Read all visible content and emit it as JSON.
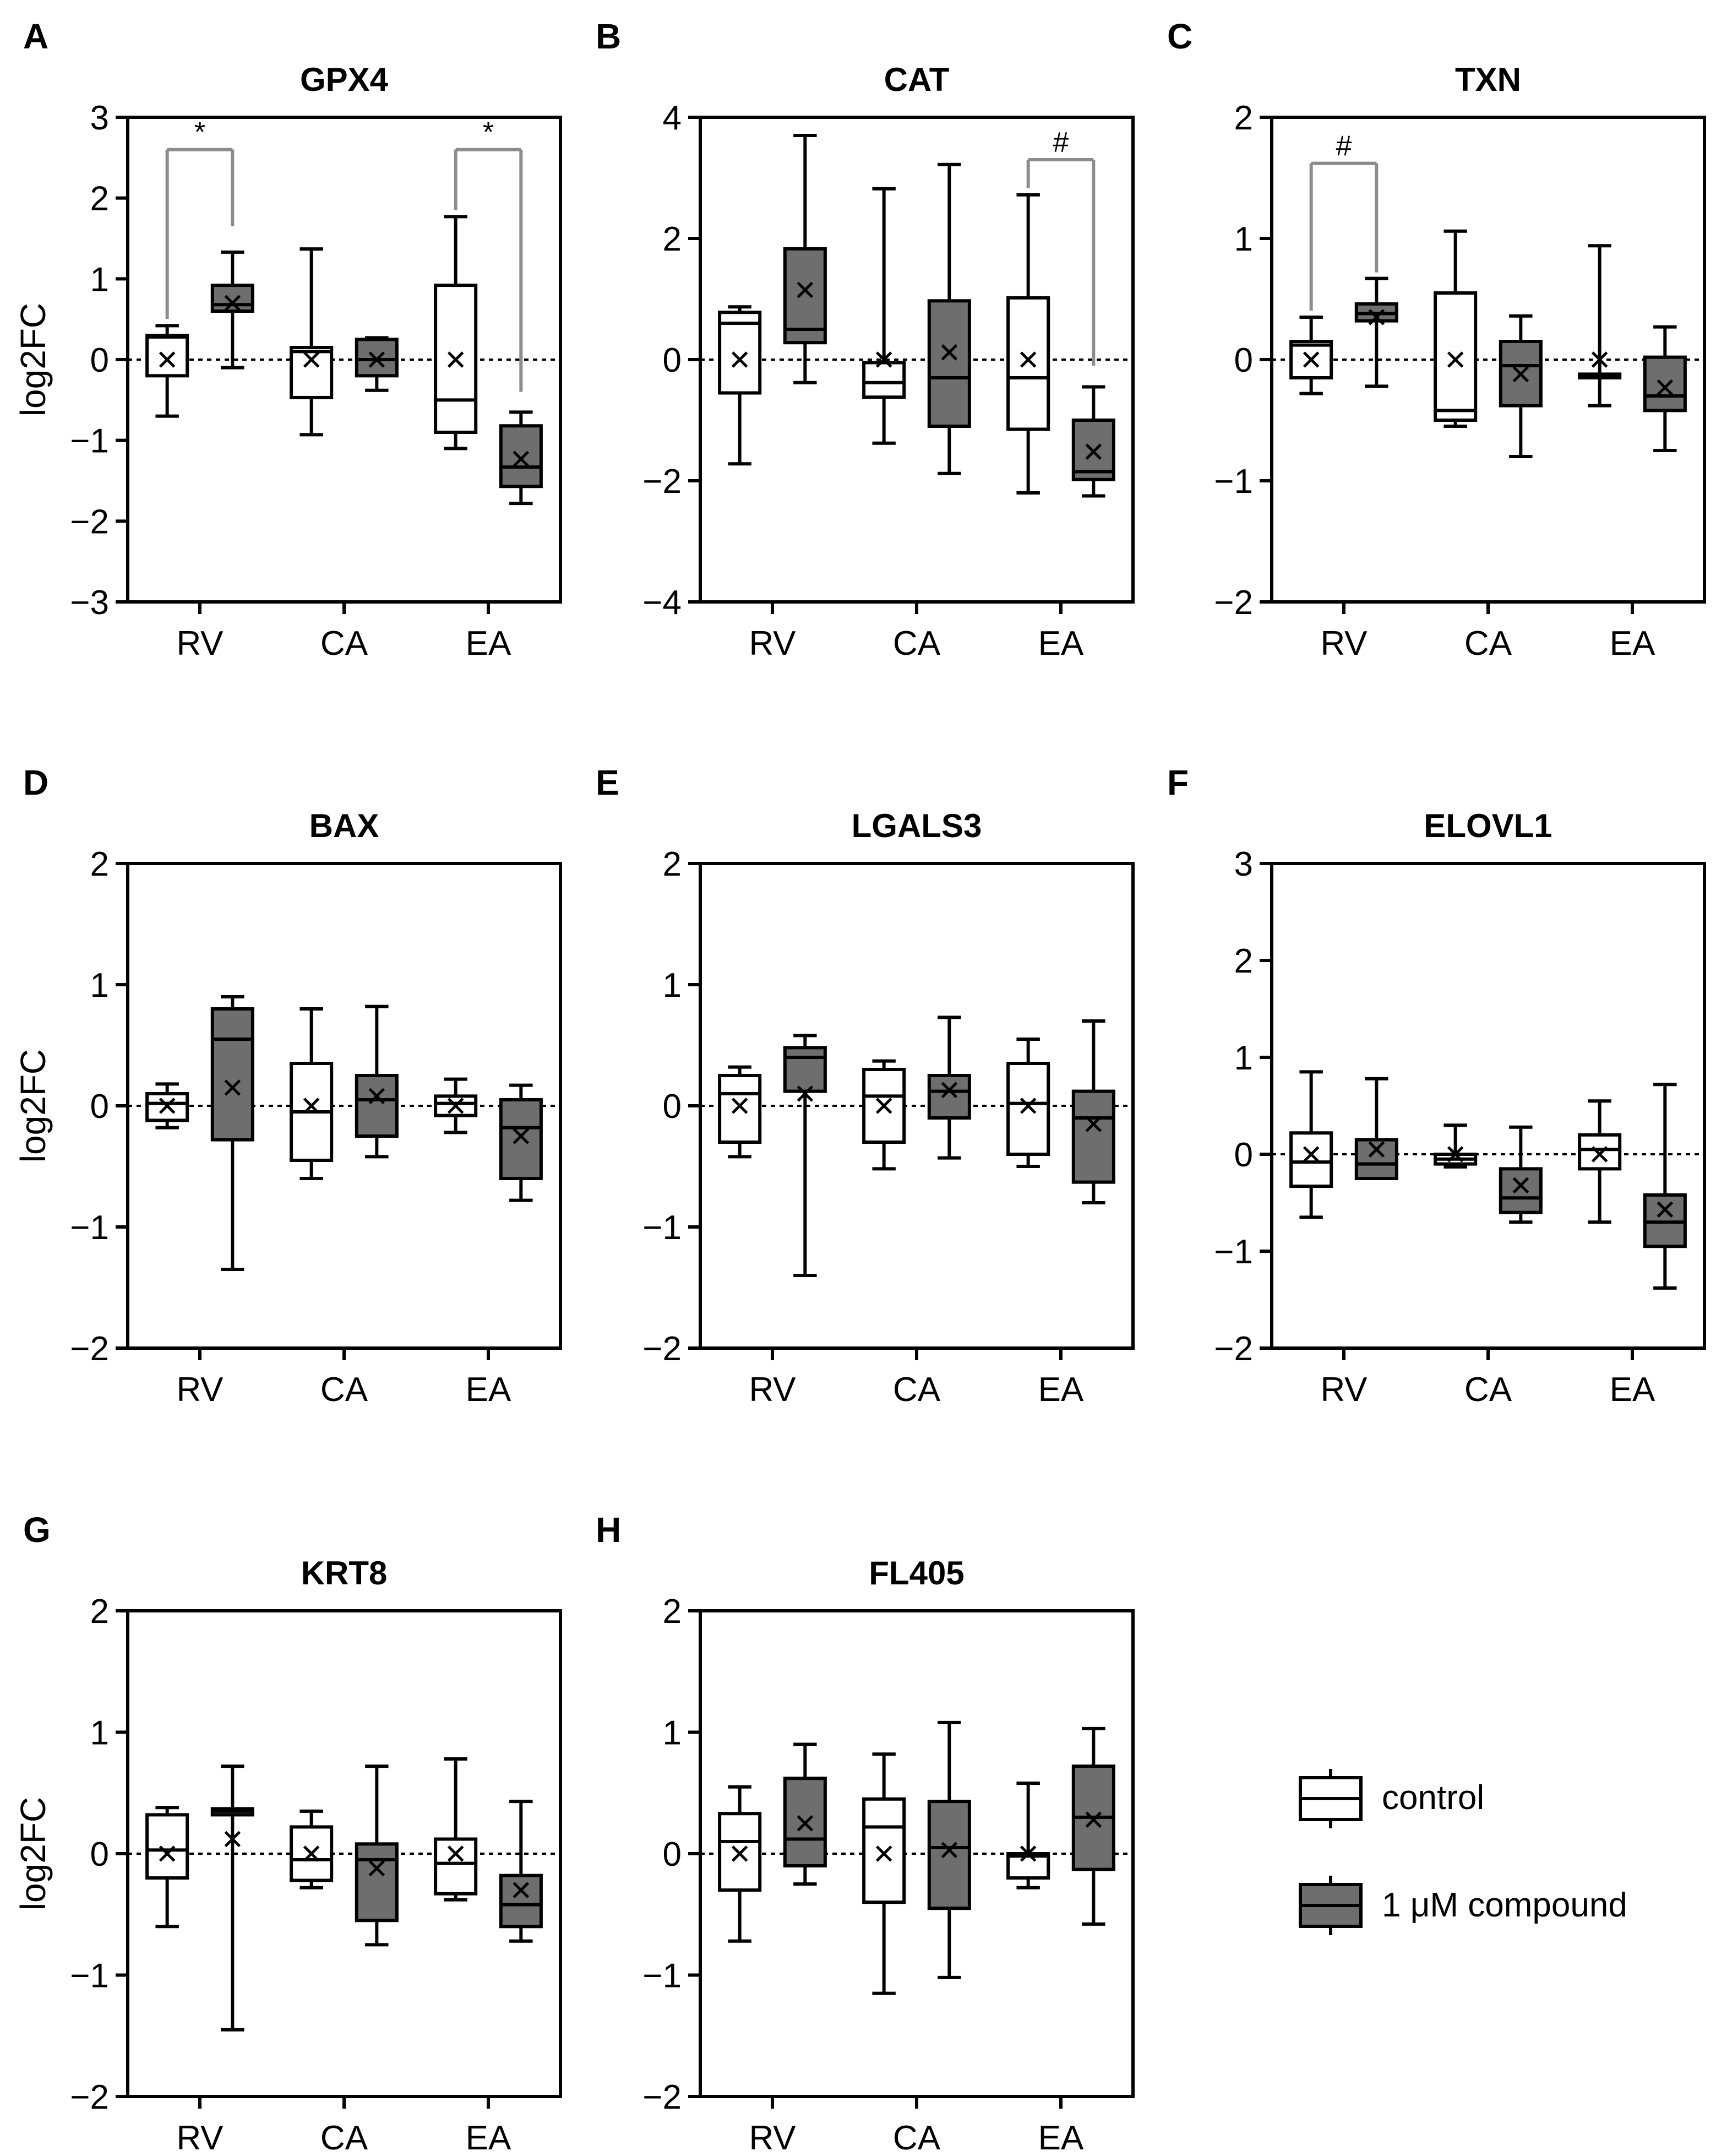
{
  "colors": {
    "control_fill": "#ffffff",
    "compound_fill": "#6e6e6e",
    "stroke": "#000000",
    "bracket": "#8c8c8c"
  },
  "legend": {
    "items": [
      {
        "label": "control",
        "fill": "#ffffff"
      },
      {
        "label": "1 μM compound",
        "fill": "#6e6e6e"
      }
    ]
  },
  "chart_data": [
    {
      "panel": "A",
      "type": "box",
      "title": "GPX4",
      "ylabel": "log2FC",
      "xlabel": "",
      "ylim": [
        -3,
        3
      ],
      "yticks": [
        -3,
        -2,
        -1,
        0,
        1,
        2,
        3
      ],
      "ytick_labels": [
        "−3",
        "−2",
        "−1",
        "0",
        "1",
        "2",
        "3"
      ],
      "categories": [
        "RV",
        "CA",
        "EA"
      ],
      "zero_line": true,
      "series": [
        {
          "name": "control",
          "boxes": [
            {
              "min": -0.7,
              "q1": -0.2,
              "median": 0.28,
              "q3": 0.3,
              "max": 0.42,
              "mean": 0.0
            },
            {
              "min": -0.93,
              "q1": -0.47,
              "median": 0.1,
              "q3": 0.15,
              "max": 1.37,
              "mean": 0.0
            },
            {
              "min": -1.1,
              "q1": -0.9,
              "median": -0.5,
              "q3": 0.92,
              "max": 1.77,
              "mean": 0.0
            }
          ]
        },
        {
          "name": "1 μM compound",
          "boxes": [
            {
              "min": -0.1,
              "q1": 0.6,
              "median": 0.68,
              "q3": 0.92,
              "max": 1.33,
              "mean": 0.7
            },
            {
              "min": -0.38,
              "q1": -0.2,
              "median": 0.0,
              "q3": 0.25,
              "max": 0.27,
              "mean": 0.0
            },
            {
              "min": -1.78,
              "q1": -1.57,
              "median": -1.33,
              "q3": -0.82,
              "max": -0.65,
              "mean": -1.23
            }
          ]
        }
      ],
      "annotations": [
        {
          "category": "RV",
          "label": "*",
          "y": 2.6,
          "right_end": 1.65
        },
        {
          "category": "EA",
          "label": "*",
          "y": 2.6,
          "right_end": -0.4
        }
      ]
    },
    {
      "panel": "B",
      "type": "box",
      "title": "CAT",
      "ylabel": "",
      "xlabel": "",
      "ylim": [
        -4,
        4
      ],
      "yticks": [
        -4,
        -2,
        0,
        2,
        4
      ],
      "ytick_labels": [
        "−4",
        "−2",
        "0",
        "2",
        "4"
      ],
      "categories": [
        "RV",
        "CA",
        "EA"
      ],
      "zero_line": true,
      "series": [
        {
          "name": "control",
          "boxes": [
            {
              "min": -1.72,
              "q1": -0.55,
              "median": 0.6,
              "q3": 0.78,
              "max": 0.87,
              "mean": 0.0
            },
            {
              "min": -1.38,
              "q1": -0.62,
              "median": -0.38,
              "q3": -0.05,
              "max": 2.82,
              "mean": 0.0
            },
            {
              "min": -2.2,
              "q1": -1.15,
              "median": -0.3,
              "q3": 1.02,
              "max": 2.72,
              "mean": 0.0
            }
          ]
        },
        {
          "name": "1 μM compound",
          "boxes": [
            {
              "min": -0.38,
              "q1": 0.28,
              "median": 0.5,
              "q3": 1.83,
              "max": 3.7,
              "mean": 1.15
            },
            {
              "min": -1.88,
              "q1": -1.1,
              "median": -0.3,
              "q3": 0.97,
              "max": 3.22,
              "mean": 0.12
            },
            {
              "min": -2.25,
              "q1": -1.98,
              "median": -1.85,
              "q3": -1.0,
              "max": -0.45,
              "mean": -1.52
            }
          ]
        }
      ],
      "annotations": [
        {
          "category": "EA",
          "label": "#",
          "y": 3.3,
          "right_end": -0.1
        }
      ]
    },
    {
      "panel": "C",
      "type": "box",
      "title": "TXN",
      "ylabel": "",
      "xlabel": "",
      "ylim": [
        -2,
        2
      ],
      "yticks": [
        -2,
        -1,
        0,
        1,
        2
      ],
      "ytick_labels": [
        "−2",
        "−1",
        "0",
        "1",
        "2"
      ],
      "categories": [
        "RV",
        "CA",
        "EA"
      ],
      "zero_line": true,
      "series": [
        {
          "name": "control",
          "boxes": [
            {
              "min": -0.28,
              "q1": -0.15,
              "median": 0.12,
              "q3": 0.15,
              "max": 0.35,
              "mean": 0.0
            },
            {
              "min": -0.55,
              "q1": -0.5,
              "median": -0.42,
              "q3": 0.55,
              "max": 1.06,
              "mean": 0.0
            },
            {
              "min": -0.38,
              "q1": -0.15,
              "median": -0.13,
              "q3": -0.12,
              "max": 0.94,
              "mean": 0.0
            }
          ]
        },
        {
          "name": "1 μM compound",
          "boxes": [
            {
              "min": -0.22,
              "q1": 0.32,
              "median": 0.38,
              "q3": 0.46,
              "max": 0.67,
              "mean": 0.35
            },
            {
              "min": -0.8,
              "q1": -0.38,
              "median": -0.05,
              "q3": 0.15,
              "max": 0.36,
              "mean": -0.12
            },
            {
              "min": -0.75,
              "q1": -0.42,
              "median": -0.3,
              "q3": 0.02,
              "max": 0.27,
              "mean": -0.23
            }
          ]
        }
      ],
      "annotations": [
        {
          "category": "RV",
          "label": "#",
          "y": 1.62,
          "right_end": 0.72
        }
      ]
    },
    {
      "panel": "D",
      "type": "box",
      "title": "BAX",
      "ylabel": "log2FC",
      "xlabel": "",
      "ylim": [
        -2,
        2
      ],
      "yticks": [
        -2,
        -1,
        0,
        1,
        2
      ],
      "ytick_labels": [
        "−2",
        "−1",
        "0",
        "1",
        "2"
      ],
      "categories": [
        "RV",
        "CA",
        "EA"
      ],
      "zero_line": true,
      "series": [
        {
          "name": "control",
          "boxes": [
            {
              "min": -0.18,
              "q1": -0.12,
              "median": 0.02,
              "q3": 0.1,
              "max": 0.18,
              "mean": 0.0
            },
            {
              "min": -0.6,
              "q1": -0.45,
              "median": -0.05,
              "q3": 0.35,
              "max": 0.8,
              "mean": 0.0
            },
            {
              "min": -0.22,
              "q1": -0.08,
              "median": 0.02,
              "q3": 0.08,
              "max": 0.22,
              "mean": 0.0
            }
          ]
        },
        {
          "name": "1 μM compound",
          "boxes": [
            {
              "min": -1.35,
              "q1": -0.28,
              "median": 0.55,
              "q3": 0.8,
              "max": 0.9,
              "mean": 0.15
            },
            {
              "min": -0.42,
              "q1": -0.25,
              "median": 0.05,
              "q3": 0.25,
              "max": 0.82,
              "mean": 0.08
            },
            {
              "min": -0.78,
              "q1": -0.6,
              "median": -0.18,
              "q3": 0.05,
              "max": 0.17,
              "mean": -0.25
            }
          ]
        }
      ],
      "annotations": []
    },
    {
      "panel": "E",
      "type": "box",
      "title": "LGALS3",
      "ylabel": "",
      "xlabel": "",
      "ylim": [
        -2,
        2
      ],
      "yticks": [
        -2,
        -1,
        0,
        1,
        2
      ],
      "ytick_labels": [
        "−2",
        "−1",
        "0",
        "1",
        "2"
      ],
      "categories": [
        "RV",
        "CA",
        "EA"
      ],
      "zero_line": true,
      "series": [
        {
          "name": "control",
          "boxes": [
            {
              "min": -0.42,
              "q1": -0.3,
              "median": 0.1,
              "q3": 0.25,
              "max": 0.32,
              "mean": 0.0
            },
            {
              "min": -0.52,
              "q1": -0.3,
              "median": 0.08,
              "q3": 0.3,
              "max": 0.37,
              "mean": 0.0
            },
            {
              "min": -0.5,
              "q1": -0.4,
              "median": 0.02,
              "q3": 0.35,
              "max": 0.55,
              "mean": 0.0
            }
          ]
        },
        {
          "name": "1 μM compound",
          "boxes": [
            {
              "min": -1.4,
              "q1": 0.12,
              "median": 0.4,
              "q3": 0.48,
              "max": 0.58,
              "mean": 0.1
            },
            {
              "min": -0.43,
              "q1": -0.1,
              "median": 0.12,
              "q3": 0.25,
              "max": 0.73,
              "mean": 0.13
            },
            {
              "min": -0.8,
              "q1": -0.63,
              "median": -0.1,
              "q3": 0.12,
              "max": 0.7,
              "mean": -0.15
            }
          ]
        }
      ],
      "annotations": []
    },
    {
      "panel": "F",
      "type": "box",
      "title": "ELOVL1",
      "ylabel": "",
      "xlabel": "",
      "ylim": [
        -2,
        3
      ],
      "yticks": [
        -2,
        -1,
        0,
        1,
        2,
        3
      ],
      "ytick_labels": [
        "−2",
        "−1",
        "0",
        "1",
        "2",
        "3"
      ],
      "categories": [
        "RV",
        "CA",
        "EA"
      ],
      "zero_line": true,
      "series": [
        {
          "name": "control",
          "boxes": [
            {
              "min": -0.65,
              "q1": -0.33,
              "median": -0.08,
              "q3": 0.22,
              "max": 0.85,
              "mean": 0.0
            },
            {
              "min": -0.13,
              "q1": -0.1,
              "median": -0.05,
              "q3": 0.0,
              "max": 0.3,
              "mean": 0.0
            },
            {
              "min": -0.7,
              "q1": -0.15,
              "median": 0.05,
              "q3": 0.2,
              "max": 0.55,
              "mean": 0.0
            }
          ]
        },
        {
          "name": "1 μM compound",
          "boxes": [
            {
              "min": -0.25,
              "q1": -0.25,
              "median": -0.1,
              "q3": 0.15,
              "max": 0.78,
              "mean": 0.05
            },
            {
              "min": -0.7,
              "q1": -0.6,
              "median": -0.45,
              "q3": -0.15,
              "max": 0.28,
              "mean": -0.32
            },
            {
              "min": -1.38,
              "q1": -0.95,
              "median": -0.7,
              "q3": -0.42,
              "max": 0.72,
              "mean": -0.57
            }
          ]
        }
      ],
      "annotations": []
    },
    {
      "panel": "G",
      "type": "box",
      "title": "KRT8",
      "ylabel": "log2FC",
      "xlabel": "",
      "ylim": [
        -2,
        2
      ],
      "yticks": [
        -2,
        -1,
        0,
        1,
        2
      ],
      "ytick_labels": [
        "−2",
        "−1",
        "0",
        "1",
        "2"
      ],
      "categories": [
        "RV",
        "CA",
        "EA"
      ],
      "zero_line": true,
      "series": [
        {
          "name": "control",
          "boxes": [
            {
              "min": -0.6,
              "q1": -0.2,
              "median": 0.03,
              "q3": 0.32,
              "max": 0.38,
              "mean": 0.0
            },
            {
              "min": -0.28,
              "q1": -0.22,
              "median": -0.05,
              "q3": 0.22,
              "max": 0.35,
              "mean": 0.0
            },
            {
              "min": -0.38,
              "q1": -0.33,
              "median": -0.08,
              "q3": 0.12,
              "max": 0.78,
              "mean": 0.0
            }
          ]
        },
        {
          "name": "1 μM compound",
          "boxes": [
            {
              "min": -1.45,
              "q1": 0.32,
              "median": 0.35,
              "q3": 0.37,
              "max": 0.72,
              "mean": 0.12
            },
            {
              "min": -0.75,
              "q1": -0.55,
              "median": -0.05,
              "q3": 0.08,
              "max": 0.72,
              "mean": -0.12
            },
            {
              "min": -0.72,
              "q1": -0.6,
              "median": -0.42,
              "q3": -0.18,
              "max": 0.43,
              "mean": -0.3
            }
          ]
        }
      ],
      "annotations": []
    },
    {
      "panel": "H",
      "type": "box",
      "title": "FL405",
      "ylabel": "",
      "xlabel": "",
      "ylim": [
        -2,
        2
      ],
      "yticks": [
        -2,
        -1,
        0,
        1,
        2
      ],
      "ytick_labels": [
        "−2",
        "−1",
        "0",
        "1",
        "2"
      ],
      "categories": [
        "RV",
        "CA",
        "EA"
      ],
      "zero_line": true,
      "series": [
        {
          "name": "control",
          "boxes": [
            {
              "min": -0.72,
              "q1": -0.3,
              "median": 0.1,
              "q3": 0.33,
              "max": 0.55,
              "mean": 0.0
            },
            {
              "min": -1.15,
              "q1": -0.4,
              "median": 0.22,
              "q3": 0.45,
              "max": 0.82,
              "mean": 0.0
            },
            {
              "min": -0.28,
              "q1": -0.2,
              "median": -0.02,
              "q3": 0.0,
              "max": 0.58,
              "mean": 0.0
            }
          ]
        },
        {
          "name": "1 μM compound",
          "boxes": [
            {
              "min": -0.25,
              "q1": -0.1,
              "median": 0.12,
              "q3": 0.62,
              "max": 0.9,
              "mean": 0.25
            },
            {
              "min": -1.02,
              "q1": -0.45,
              "median": 0.05,
              "q3": 0.43,
              "max": 1.08,
              "mean": 0.03
            },
            {
              "min": -0.58,
              "q1": -0.13,
              "median": 0.3,
              "q3": 0.72,
              "max": 1.03,
              "mean": 0.28
            }
          ]
        }
      ],
      "annotations": []
    }
  ]
}
